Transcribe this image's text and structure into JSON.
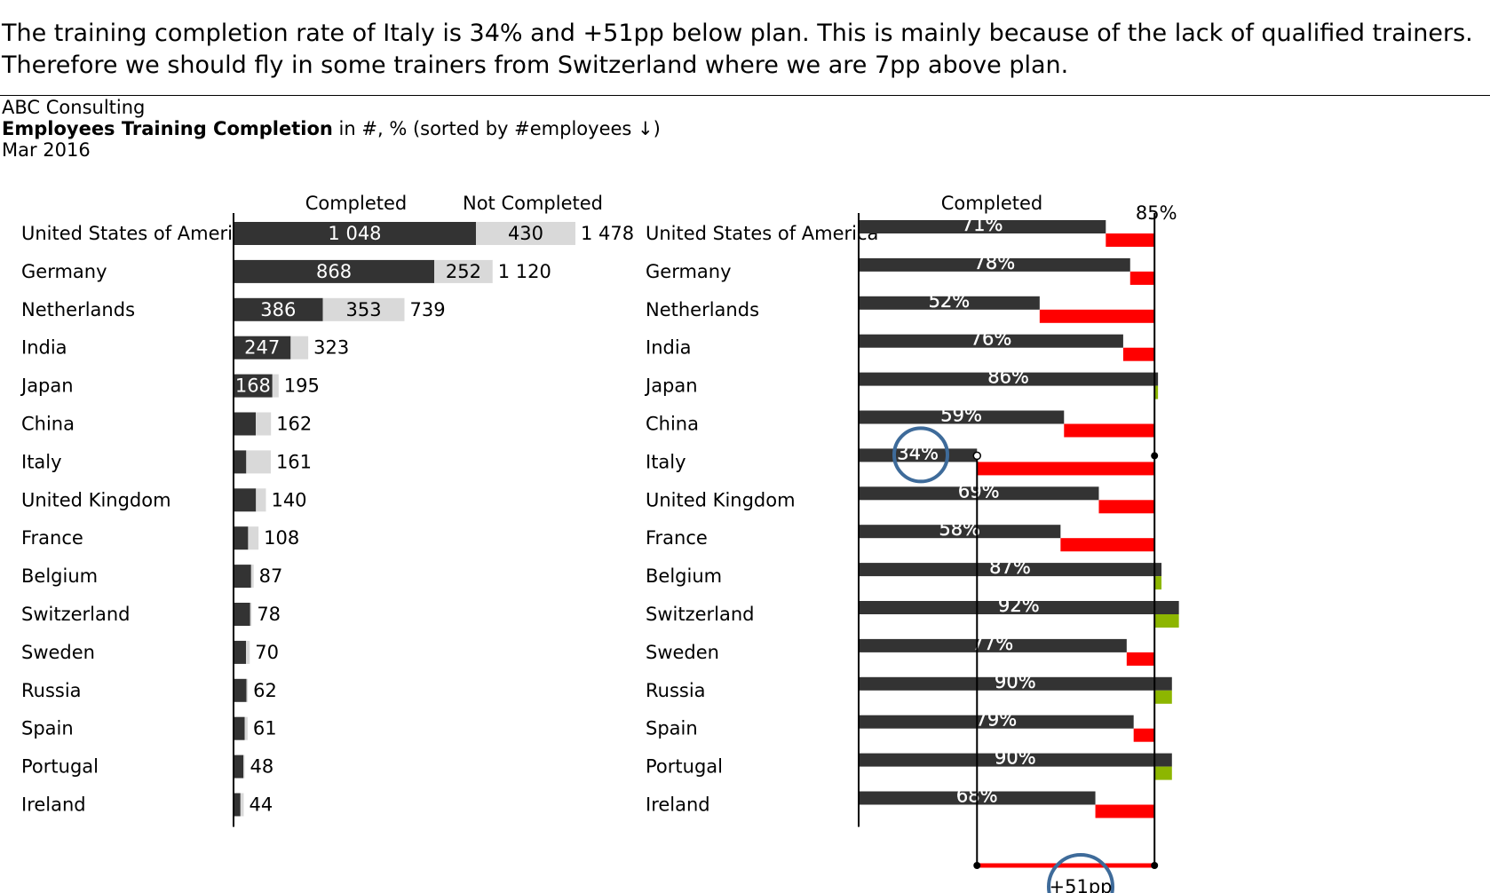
{
  "headline": {
    "line1": "The training completion rate of Italy is 34% and +51pp below plan. This is mainly because of the lack of qualified trainers.",
    "line2": "Therefore we should fly in some trainers from Switzerland where we are 7pp above plan."
  },
  "meta": {
    "company": "ABC Consulting",
    "title_bold": "Employees Training Completion",
    "title_rest": " in #, % (sorted by #employees ↓)",
    "date": "Mar 2016"
  },
  "colors": {
    "completed": "#333333",
    "not_completed": "#d9d9d9",
    "below_plan": "#ff0000",
    "above_plan": "#8db600",
    "highlight_circle": "#3e6b9a"
  },
  "chart_data": [
    {
      "type": "bar",
      "stacked": true,
      "orientation": "horizontal",
      "categories": [
        "United States of America",
        "Germany",
        "Netherlands",
        "India",
        "Japan",
        "China",
        "Italy",
        "United Kingdom",
        "France",
        "Belgium",
        "Switzerland",
        "Sweden",
        "Russia",
        "Spain",
        "Portugal",
        "Ireland"
      ],
      "series": [
        {
          "name": "Completed",
          "values": [
            1048,
            868,
            386,
            247,
            168,
            96,
            55,
            97,
            63,
            76,
            72,
            54,
            56,
            48,
            43,
            30
          ],
          "labels": [
            "1 048",
            "868",
            "386",
            "247",
            "168",
            "",
            "",
            "",
            "",
            "",
            "",
            "",
            "",
            "",
            "",
            ""
          ]
        },
        {
          "name": "Not Completed",
          "values": [
            430,
            252,
            353,
            76,
            27,
            66,
            106,
            43,
            45,
            11,
            6,
            16,
            6,
            13,
            5,
            14
          ],
          "labels": [
            "430",
            "252",
            "353",
            "",
            "",
            "",
            "",
            "",
            "",
            "",
            "",
            "",
            "",
            "",
            "",
            ""
          ]
        }
      ],
      "totals": [
        1478,
        1120,
        739,
        323,
        195,
        162,
        161,
        140,
        108,
        87,
        78,
        70,
        62,
        61,
        48,
        44
      ],
      "total_labels": [
        "1 478",
        "1 120",
        "739",
        "323",
        "195",
        "162",
        "161",
        "140",
        "108",
        "87",
        "78",
        "70",
        "62",
        "61",
        "48",
        "44"
      ]
    },
    {
      "type": "bar",
      "orientation": "horizontal",
      "header": "Completed",
      "categories": [
        "United States of America",
        "Germany",
        "Netherlands",
        "India",
        "Japan",
        "China",
        "Italy",
        "United Kingdom",
        "France",
        "Belgium",
        "Switzerland",
        "Sweden",
        "Russia",
        "Spain",
        "Portugal",
        "Ireland"
      ],
      "values": [
        71,
        78,
        52,
        76,
        86,
        59,
        34,
        69,
        58,
        87,
        92,
        77,
        90,
        79,
        90,
        68
      ],
      "value_labels": [
        "71%",
        "78%",
        "52%",
        "76%",
        "86%",
        "59%",
        "34%",
        "69%",
        "58%",
        "87%",
        "92%",
        "77%",
        "90%",
        "79%",
        "90%",
        "68%"
      ],
      "plan": 85,
      "plan_label": "85%",
      "highlight": {
        "category": "Italy",
        "difference_label": "+51pp"
      }
    }
  ]
}
